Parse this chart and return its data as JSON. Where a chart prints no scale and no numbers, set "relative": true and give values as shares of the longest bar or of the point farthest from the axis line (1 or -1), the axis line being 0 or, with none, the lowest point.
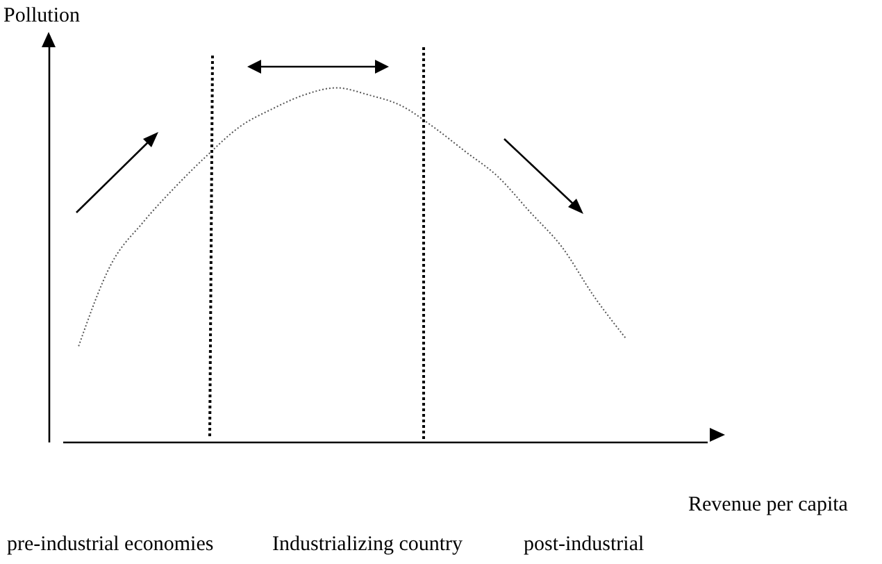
{
  "chart_data": {
    "type": "line",
    "relative": true,
    "xlabel": "Revenue per capita",
    "ylabel": "Pollution",
    "categories": [
      null,
      null,
      null,
      null,
      null,
      null,
      null,
      null,
      null,
      null,
      null,
      null,
      null,
      null,
      null,
      null,
      null,
      null,
      null,
      null
    ],
    "series": [
      {
        "color": "#555555",
        "values": [
          0.27,
          0.5,
          0.62,
          0.72,
          0.81,
          0.89,
          0.94,
          0.98,
          1,
          0.98,
          0.95,
          0.89,
          0.82,
          0.75,
          0.65,
          0.55,
          0.41,
          0.29,
          null,
          null
        ]
      }
    ],
    "line_style": "dotted",
    "marker": "none",
    "grid": false,
    "legend": false,
    "annotations": [
      "pre-industrial economies",
      "Industrializing country",
      "post-industrial"
    ]
  }
}
